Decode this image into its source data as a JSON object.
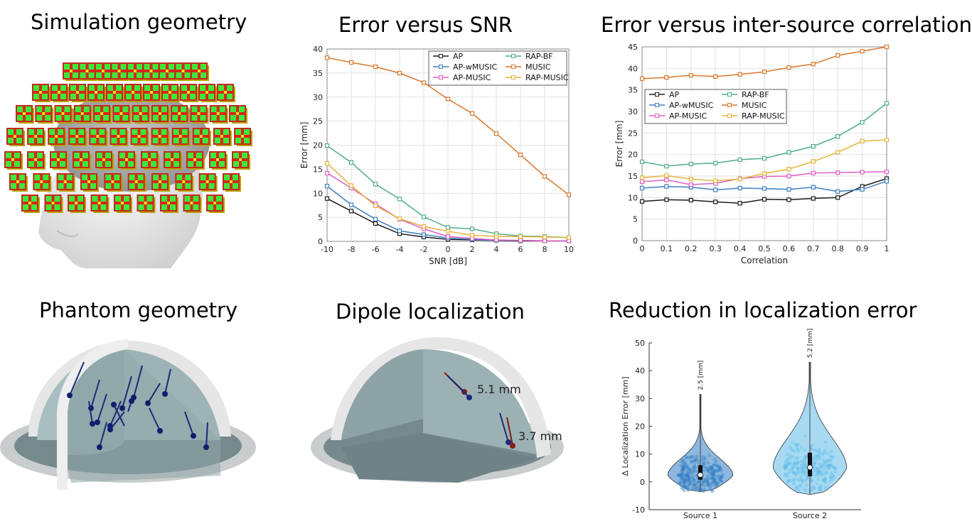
{
  "titles": {
    "sim": "Simulation geometry",
    "snr": "Error versus SNR",
    "corr": "Error versus inter-source correlation",
    "phantom": "Phantom geometry",
    "dipole": "Dipole localization",
    "reduction": "Reduction in localization error"
  },
  "dipole_labels": {
    "d1": "5.1 mm",
    "d2": "3.7 mm"
  },
  "colors": {
    "AP": "#1a1a1a",
    "AP-wMUSIC": "#3d7fc1",
    "AP-MUSIC": "#e05fc3",
    "RAP-BF": "#4fae8a",
    "MUSIC": "#d9772d",
    "RAP-MUSIC": "#e6b23a",
    "violin1": "#2f7cc3",
    "violin2": "#5fbbe8"
  },
  "chart_data": [
    {
      "type": "line",
      "xlabel": "SNR [dB]",
      "ylabel": "Error [mm]",
      "xlim": [
        -10,
        10
      ],
      "ylim": [
        0,
        40
      ],
      "xticks": [
        -10,
        -8,
        -6,
        -4,
        -2,
        0,
        2,
        4,
        6,
        8,
        10
      ],
      "yticks": [
        0,
        5,
        10,
        15,
        20,
        25,
        30,
        35,
        40
      ],
      "x": [
        -10,
        -8,
        -6,
        -4,
        -2,
        0,
        2,
        4,
        6,
        8,
        10
      ],
      "grid": true,
      "legend": "top-right",
      "series": [
        {
          "name": "AP",
          "values": [
            8.9,
            6.3,
            3.7,
            1.6,
            0.9,
            0.4,
            0.3,
            0.2,
            0.1,
            0.1,
            0.1
          ]
        },
        {
          "name": "AP-wMUSIC",
          "values": [
            11.5,
            7.6,
            4.6,
            2.2,
            1.4,
            0.7,
            0.4,
            0.2,
            0.2,
            0.1,
            0.1
          ]
        },
        {
          "name": "AP-MUSIC",
          "values": [
            14.2,
            11.1,
            7.8,
            4.6,
            2.6,
            1.0,
            0.6,
            0.3,
            0.2,
            0.1,
            0.1
          ]
        },
        {
          "name": "RAP-BF",
          "values": [
            19.9,
            16.4,
            11.9,
            8.8,
            5.1,
            2.9,
            2.6,
            1.6,
            1.1,
            1.0,
            0.8
          ]
        },
        {
          "name": "MUSIC",
          "values": [
            38.2,
            37.2,
            36.3,
            35.0,
            33.0,
            29.6,
            26.6,
            22.4,
            18.0,
            13.5,
            9.7
          ]
        },
        {
          "name": "RAP-MUSIC",
          "values": [
            16.2,
            11.6,
            7.4,
            4.7,
            3.1,
            2.1,
            1.3,
            1.0,
            1.0,
            0.9,
            0.8
          ]
        }
      ]
    },
    {
      "type": "line",
      "xlabel": "Correlation",
      "ylabel": "Error [mm]",
      "xlim": [
        0,
        1
      ],
      "ylim": [
        0,
        45
      ],
      "xticks": [
        0,
        0.1,
        0.2,
        0.3,
        0.4,
        0.5,
        0.6,
        0.7,
        0.8,
        0.9,
        1
      ],
      "yticks": [
        0,
        5,
        10,
        15,
        20,
        25,
        30,
        35,
        40,
        45
      ],
      "x": [
        0,
        0.1,
        0.2,
        0.3,
        0.4,
        0.5,
        0.6,
        0.7,
        0.8,
        0.9,
        1
      ],
      "grid": true,
      "legend": "middle-left",
      "series": [
        {
          "name": "AP",
          "values": [
            9.1,
            9.5,
            9.4,
            9.0,
            8.7,
            9.6,
            9.5,
            9.8,
            10.0,
            12.6,
            14.4
          ]
        },
        {
          "name": "AP-wMUSIC",
          "values": [
            12.2,
            12.6,
            12.4,
            11.8,
            12.2,
            12.1,
            11.9,
            12.4,
            11.4,
            11.9,
            13.8
          ]
        },
        {
          "name": "AP-MUSIC",
          "values": [
            13.7,
            14.1,
            13.0,
            13.3,
            14.4,
            14.9,
            15.0,
            15.7,
            15.8,
            15.9,
            16.0
          ]
        },
        {
          "name": "RAP-BF",
          "values": [
            18.3,
            17.3,
            17.8,
            18.0,
            18.8,
            19.1,
            20.5,
            21.9,
            24.2,
            27.5,
            31.9
          ]
        },
        {
          "name": "MUSIC",
          "values": [
            37.6,
            37.9,
            38.4,
            38.1,
            38.6,
            39.2,
            40.2,
            41.0,
            43.0,
            44.0,
            45.2
          ]
        },
        {
          "name": "RAP-MUSIC",
          "values": [
            14.6,
            15.1,
            14.3,
            13.9,
            14.3,
            15.6,
            16.6,
            18.4,
            20.5,
            23.1,
            23.4
          ]
        }
      ]
    },
    {
      "type": "violin",
      "ylabel": "Δ Localization Error [mm]",
      "ylim": [
        -10,
        50
      ],
      "yticks": [
        -10,
        0,
        10,
        20,
        30,
        40,
        50
      ],
      "categories": [
        "Source 1",
        "Source 2"
      ],
      "medians": [
        2.5,
        5.2
      ],
      "median_labels": [
        "2.5 [mm]",
        "5.2 [mm]"
      ],
      "q1": [
        0.8,
        2.0
      ],
      "q3": [
        6.0,
        10.5
      ],
      "min": [
        -3.5,
        -4.5
      ],
      "max": [
        31.5,
        43.0
      ]
    }
  ]
}
